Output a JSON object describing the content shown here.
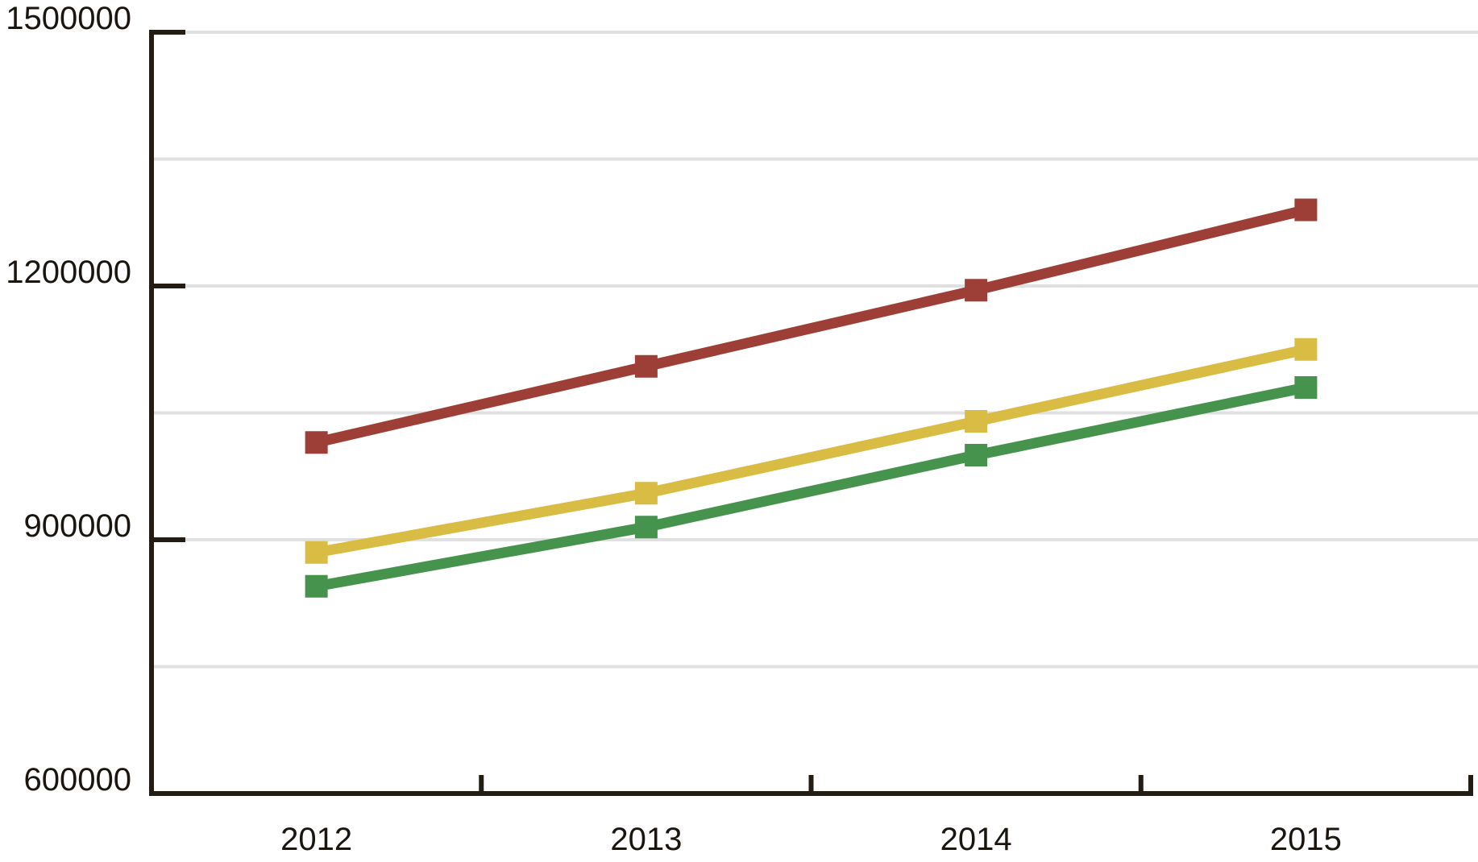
{
  "chart_data": {
    "type": "line",
    "title": "",
    "xlabel": "",
    "ylabel": "",
    "categories": [
      "2012",
      "2013",
      "2014",
      "2015"
    ],
    "series": [
      {
        "name": "dark-red-series",
        "color": "#9e3f37",
        "values": [
          1015000,
          1105000,
          1195000,
          1290000
        ]
      },
      {
        "name": "yellow-series",
        "color": "#d9bc43",
        "values": [
          885000,
          955000,
          1040000,
          1125000
        ]
      },
      {
        "name": "green-series",
        "color": "#45934d",
        "values": [
          845000,
          915000,
          1000000,
          1080000
        ]
      }
    ],
    "y_axis": {
      "min": 600000,
      "max": 1500000,
      "tick_interval": 300000,
      "tick_values": [
        600000,
        900000,
        1200000,
        1500000
      ],
      "tick_labels": [
        "600000",
        "900000",
        "1200000",
        "1500000"
      ],
      "gridline_interval": 150000
    },
    "x_axis": {
      "tick_style": "between-categories"
    },
    "legend": "none",
    "grid": "horizontal",
    "marker": "square",
    "colors": {
      "background": "#ffffff",
      "axis": "#221c12",
      "gridline": "#e0e0e0",
      "label": "#1a150f"
    }
  }
}
